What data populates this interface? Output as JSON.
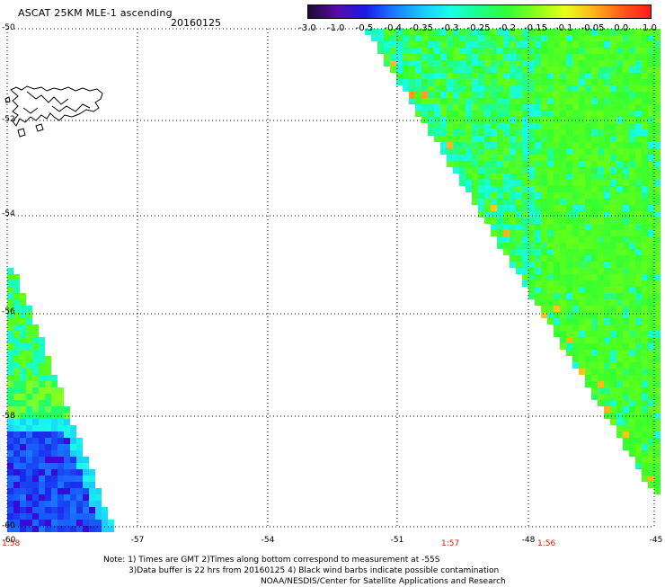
{
  "header": {
    "title": "ASCAT 25KM MLE-1 ascending",
    "date": "20160125"
  },
  "colorbar": {
    "labels": [
      "-3.0",
      "-1.0",
      "-0.5",
      "-0.4",
      "-0.35",
      "-0.3",
      "-0.25",
      "-0.2",
      "-0.15",
      "-0.1",
      "-0.05",
      "0.0",
      "1.0"
    ],
    "colors": [
      "#1a0a2e",
      "#5a0aa8",
      "#1a1ae8",
      "#1a7aff",
      "#19c8ff",
      "#19ffe8",
      "#19ff8a",
      "#33ff33",
      "#8aff19",
      "#e8ff19",
      "#ffb419",
      "#ff5a19",
      "#ff1a1a"
    ]
  },
  "map": {
    "lat_labels": [
      "-50",
      "-52",
      "-54",
      "-56",
      "-58",
      "-60"
    ],
    "lon_labels": [
      "-60",
      "-57",
      "-54",
      "-51",
      "-48",
      "-45"
    ],
    "time_labels": [
      "1:58",
      "1:57",
      "1:56"
    ]
  },
  "notes": {
    "line1": "Note: 1) Times are GMT 2)Times along bottom correspond to measurement at -55S",
    "line2": "3)Data buffer is 22 hrs from 20160125 4) Black wind barbs indicate possible contamination",
    "line3": "NOAA/NESDIS/Center for Satellite Applications and Research"
  }
}
